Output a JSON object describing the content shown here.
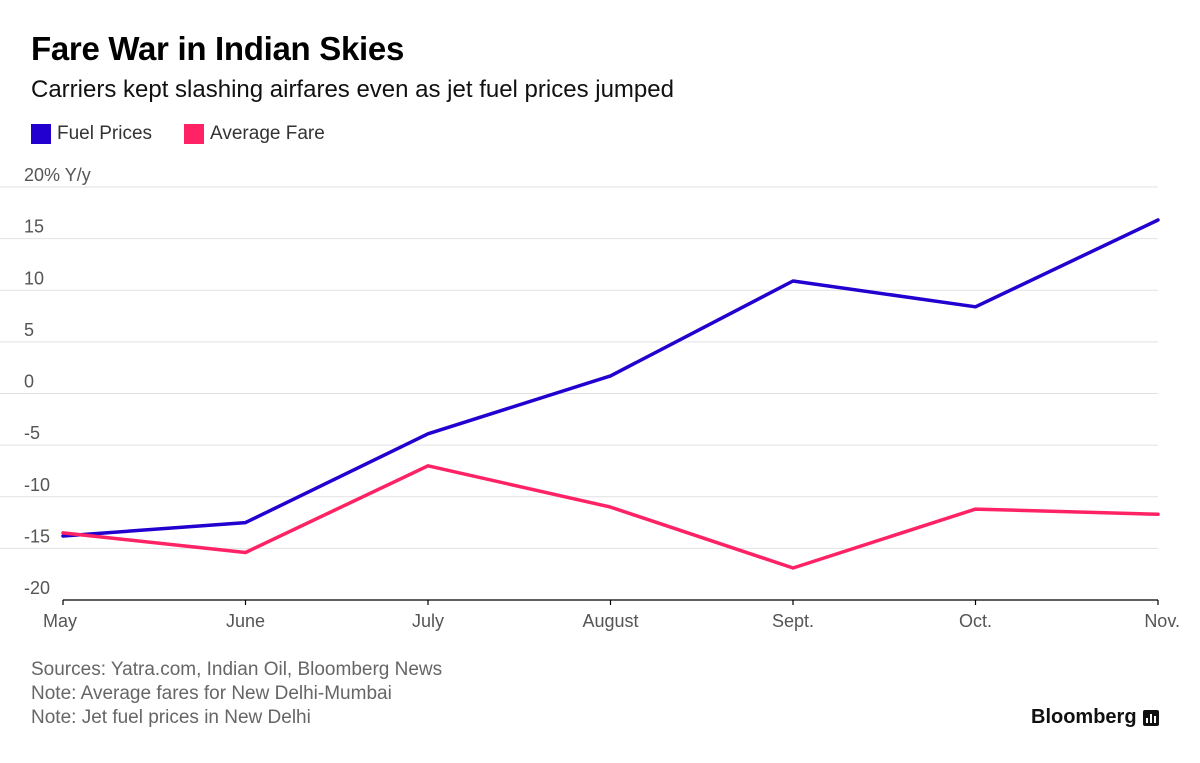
{
  "header": {
    "title": "Fare War in Indian Skies",
    "subtitle": "Carriers kept slashing airfares even as jet fuel prices jumped"
  },
  "legend": [
    {
      "label": "Fuel Prices",
      "color": "#2200d0"
    },
    {
      "label": "Average Fare",
      "color": "#ff2366"
    }
  ],
  "chart_data": {
    "type": "line",
    "x": [
      "May",
      "June",
      "July",
      "August",
      "Sept.",
      "Oct.",
      "Nov."
    ],
    "series": [
      {
        "name": "Fuel Prices",
        "color": "#2200d0",
        "values": [
          -13.8,
          -12.5,
          -3.9,
          1.7,
          10.9,
          8.4,
          16.8
        ]
      },
      {
        "name": "Average Fare",
        "color": "#ff2366",
        "values": [
          -13.5,
          -15.4,
          -7.0,
          -11.0,
          -16.9,
          -11.2,
          -11.7
        ]
      }
    ],
    "ylim": [
      -20,
      20
    ],
    "yticks": [
      20,
      15,
      10,
      5,
      0,
      -5,
      -10,
      -15,
      -20
    ],
    "ytick_labels": [
      "20% Y/y",
      "15",
      "10",
      "5",
      "0",
      "-5",
      "-10",
      "-15",
      "-20"
    ],
    "grid": true,
    "legend_position": "top-left"
  },
  "footer": {
    "notes": [
      "Sources: Yatra.com, Indian Oil, Bloomberg News",
      "Note: Average fares for New Delhi-Mumbai",
      "Note: Jet fuel prices in New Delhi"
    ],
    "brand": "Bloomberg"
  }
}
